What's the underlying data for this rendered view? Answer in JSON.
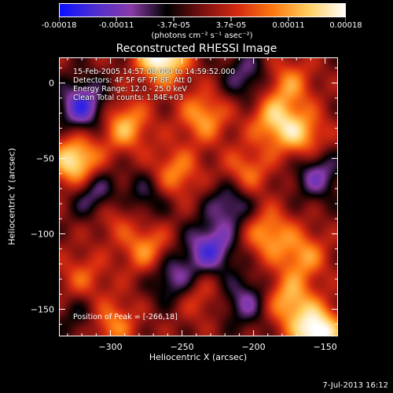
{
  "colorbar": {
    "tick_labels": [
      "-0.00018",
      "-0.00011",
      "-3.7e-05",
      "3.7e-05",
      "0.00011",
      "0.00018"
    ],
    "units": "(photons cm⁻² s⁻¹ asec⁻²)",
    "stops": [
      "#0b10ff",
      "#4f2fd0",
      "#8a3aa8",
      "#000000",
      "#7a1010",
      "#d62a10",
      "#ff7a10",
      "#ffd060",
      "#ffffff"
    ]
  },
  "header": {
    "time_range": "15-Feb-2005 14:57:08.000 to 14:59:52.000",
    "detectors": "Detectors: 4F 5F 6F 7F 8F, Att 0",
    "energy": "Energy Range: 12.0 - 25.0 keV",
    "clean": "Clean    Total counts: 1.84E+03",
    "peak": "Position of Peak = [-266,18]"
  },
  "footer": {
    "date": "7-Jul-2013 16:12"
  },
  "chart_data": {
    "type": "heatmap",
    "title": "Reconstructed RHESSI Image",
    "xlabel": "Heliocentric X (arcsec)",
    "ylabel": "Heliocentric Y (arcsec)",
    "xlim": [
      -336,
      -141
    ],
    "ylim": [
      -168,
      17
    ],
    "x_ticks": [
      -300,
      -250,
      -200,
      -150
    ],
    "y_ticks": [
      -150,
      -100,
      -50,
      0
    ],
    "value_range": [
      -0.00018,
      0.00018
    ],
    "peak": [
      -266,
      18
    ],
    "sources": [
      {
        "x": -264,
        "y": 18,
        "v": 1.0
      },
      {
        "x": -155,
        "y": -166,
        "v": 1.0
      },
      {
        "x": -325,
        "y": -52,
        "v": 0.85
      },
      {
        "x": -290,
        "y": -28,
        "v": 0.6
      },
      {
        "x": -235,
        "y": -22,
        "v": 0.55
      },
      {
        "x": -185,
        "y": -25,
        "v": 0.6
      },
      {
        "x": -255,
        "y": -60,
        "v": 0.5
      },
      {
        "x": -205,
        "y": -60,
        "v": 0.45
      },
      {
        "x": -165,
        "y": -35,
        "v": 0.55
      },
      {
        "x": -300,
        "y": -85,
        "v": 0.4
      },
      {
        "x": -275,
        "y": -110,
        "v": 0.5
      },
      {
        "x": -190,
        "y": -100,
        "v": 0.55
      },
      {
        "x": -165,
        "y": -115,
        "v": 0.5
      },
      {
        "x": -240,
        "y": -140,
        "v": 0.35
      },
      {
        "x": -175,
        "y": -145,
        "v": 0.6
      },
      {
        "x": -300,
        "y": -160,
        "v": 0.5
      },
      {
        "x": -320,
        "y": -130,
        "v": 0.35
      },
      {
        "x": -175,
        "y": 0,
        "v": 0.45
      },
      {
        "x": -320,
        "y": -15,
        "v": -0.7
      },
      {
        "x": -310,
        "y": -75,
        "v": -0.6
      },
      {
        "x": -230,
        "y": -110,
        "v": -0.65
      },
      {
        "x": -255,
        "y": -130,
        "v": -0.55
      },
      {
        "x": -215,
        "y": -80,
        "v": -0.5
      },
      {
        "x": -155,
        "y": -60,
        "v": -0.5
      },
      {
        "x": -205,
        "y": 5,
        "v": -0.4
      },
      {
        "x": -275,
        "y": -75,
        "v": -0.35
      },
      {
        "x": -205,
        "y": -145,
        "v": -0.45
      },
      {
        "x": -320,
        "y": -155,
        "v": -0.3
      }
    ]
  }
}
